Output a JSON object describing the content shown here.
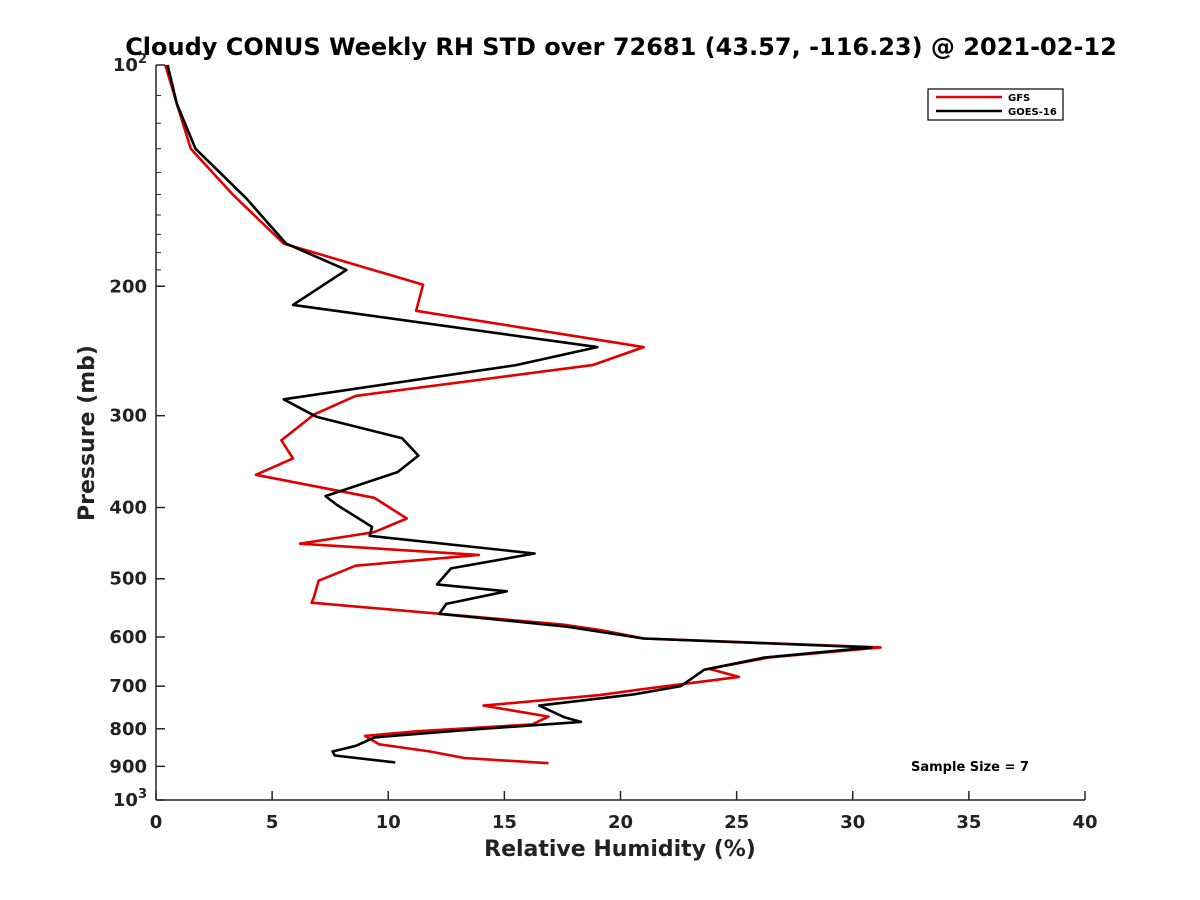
{
  "chart_data": {
    "type": "line",
    "title": "Cloudy CONUS Weekly RH STD over 72681 (43.57, -116.23) @ 2021-02-12",
    "xlabel": "Relative Humidity (%)",
    "ylabel": "Pressure (mb)",
    "xlim": [
      0,
      40
    ],
    "ylim": [
      100,
      1000
    ],
    "y_scale": "log",
    "y_reversed": true,
    "grid": false,
    "legend_placement": "top-right",
    "x_ticks": [
      "0",
      "5",
      "10",
      "15",
      "20",
      "25",
      "30",
      "35",
      "40"
    ],
    "y_ticks": [
      {
        "value": 100,
        "base": "10",
        "exp": "2"
      },
      {
        "value": 200,
        "label": "200"
      },
      {
        "value": 300,
        "label": "300"
      },
      {
        "value": 400,
        "label": "400"
      },
      {
        "value": 500,
        "label": "500"
      },
      {
        "value": 600,
        "label": "600"
      },
      {
        "value": 700,
        "label": "700"
      },
      {
        "value": 800,
        "label": "800"
      },
      {
        "value": 900,
        "label": "900"
      },
      {
        "value": 1000,
        "base": "10",
        "exp": "3"
      }
    ],
    "annotation": "Sample Size = 7",
    "series": [
      {
        "name": "GFS",
        "color": "#e00000",
        "points": [
          [
            0.4,
            100
          ],
          [
            0.9,
            113
          ],
          [
            1.5,
            130
          ],
          [
            3.3,
            150
          ],
          [
            5.5,
            175
          ],
          [
            11.5,
            199
          ],
          [
            11.2,
            216
          ],
          [
            21.0,
            242
          ],
          [
            18.8,
            256
          ],
          [
            8.6,
            282
          ],
          [
            6.8,
            299
          ],
          [
            5.4,
            324
          ],
          [
            5.9,
            343
          ],
          [
            4.3,
            361
          ],
          [
            9.4,
            388
          ],
          [
            10.8,
            414
          ],
          [
            9.4,
            432
          ],
          [
            6.2,
            448
          ],
          [
            13.9,
            464
          ],
          [
            8.6,
            480
          ],
          [
            7.0,
            503
          ],
          [
            6.8,
            530
          ],
          [
            6.7,
            539
          ],
          [
            17.5,
            577
          ],
          [
            19.1,
            587
          ],
          [
            21.0,
            603
          ],
          [
            31.2,
            620
          ],
          [
            26.4,
            640
          ],
          [
            23.8,
            663
          ],
          [
            25.1,
            680
          ],
          [
            21.2,
            705
          ],
          [
            19.1,
            720
          ],
          [
            14.1,
            744
          ],
          [
            16.9,
            770
          ],
          [
            16.2,
            789
          ],
          [
            11.3,
            806
          ],
          [
            9.0,
            818
          ],
          [
            9.6,
            840
          ],
          [
            11.8,
            859
          ],
          [
            13.3,
            877
          ],
          [
            16.9,
            891
          ]
        ]
      },
      {
        "name": "GOES-16",
        "color": "#000000",
        "points": [
          [
            0.5,
            100
          ],
          [
            0.9,
            113
          ],
          [
            1.7,
            130
          ],
          [
            3.9,
            152
          ],
          [
            5.6,
            175
          ],
          [
            8.2,
            190
          ],
          [
            5.9,
            212
          ],
          [
            19.0,
            242
          ],
          [
            15.5,
            256
          ],
          [
            5.5,
            285
          ],
          [
            6.9,
            301
          ],
          [
            10.6,
            322
          ],
          [
            11.3,
            340
          ],
          [
            10.4,
            358
          ],
          [
            7.3,
            386
          ],
          [
            7.8,
            397
          ],
          [
            9.3,
            425
          ],
          [
            9.2,
            437
          ],
          [
            16.3,
            462
          ],
          [
            12.7,
            484
          ],
          [
            12.1,
            509
          ],
          [
            15.1,
            520
          ],
          [
            12.5,
            541
          ],
          [
            12.2,
            558
          ],
          [
            17.7,
            581
          ],
          [
            21.0,
            603
          ],
          [
            30.8,
            620
          ],
          [
            26.2,
            640
          ],
          [
            23.6,
            665
          ],
          [
            22.6,
            700
          ],
          [
            20.6,
            718
          ],
          [
            16.5,
            744
          ],
          [
            17.6,
            772
          ],
          [
            18.3,
            783
          ],
          [
            13.6,
            802
          ],
          [
            9.4,
            822
          ],
          [
            8.6,
            844
          ],
          [
            7.6,
            859
          ],
          [
            7.7,
            870
          ],
          [
            10.3,
            889
          ]
        ]
      }
    ]
  }
}
